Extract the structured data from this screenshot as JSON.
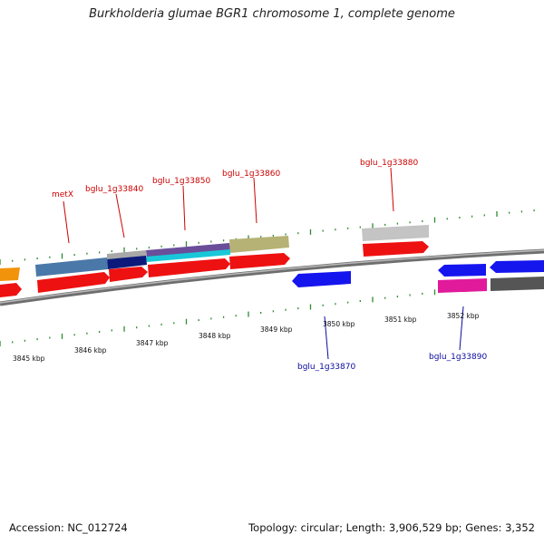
{
  "title": "Burkholderia glumae BGR1 chromosome 1, complete genome",
  "footer": {
    "accession": "Accession: NC_012724",
    "summary": "Topology: circular; Length: 3,906,529 bp; Genes: 3,352"
  },
  "colors": {
    "backbone": "#8a8a8a",
    "tick": "#2e8b2e",
    "forward_label": "#cc0000",
    "reverse_label": "#0a0aa0"
  },
  "kbp_labels": [
    "3845 kbp",
    "3846 kbp",
    "3847 kbp",
    "3848 kbp",
    "3849 kbp",
    "3850 kbp",
    "3851 kbp",
    "3852 kbp"
  ],
  "forward_gene_labels": [
    "metX",
    "bglu_1g33840",
    "bglu_1g33850",
    "bglu_1g33860",
    "bglu_1g33880"
  ],
  "reverse_gene_labels": [
    "bglu_1g33870",
    "bglu_1g33890"
  ]
}
